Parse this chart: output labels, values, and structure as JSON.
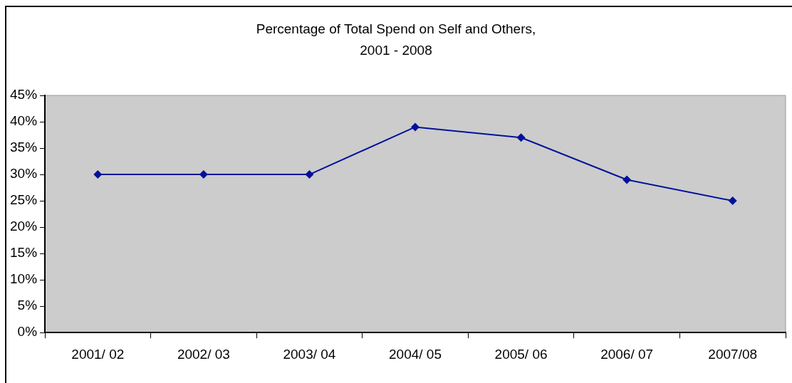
{
  "chart_data": {
    "type": "line",
    "title": "Percentage of Total Spend on Self and Others,\n2001 - 2008",
    "categories": [
      "2001/ 02",
      "2002/ 03",
      "2003/ 04",
      "2004/ 05",
      "2005/ 06",
      "2006/ 07",
      "2007/08"
    ],
    "series": [
      {
        "color": "#00129a",
        "values": [
          30,
          30,
          30,
          39,
          37,
          29,
          25
        ]
      }
    ],
    "ylim": [
      0,
      45
    ],
    "yticks": [
      {
        "value": 0,
        "label": "0%"
      },
      {
        "value": 5,
        "label": "5%"
      },
      {
        "value": 10,
        "label": "10%"
      },
      {
        "value": 15,
        "label": "15%"
      },
      {
        "value": 20,
        "label": "20%"
      },
      {
        "value": 25,
        "label": "25%"
      },
      {
        "value": 30,
        "label": "30%"
      },
      {
        "value": 35,
        "label": "35%"
      },
      {
        "value": 40,
        "label": "40%"
      },
      {
        "value": 45,
        "label": "45%"
      }
    ],
    "grid": false,
    "legend": false,
    "marker": "diamond",
    "line_style": "solid"
  }
}
